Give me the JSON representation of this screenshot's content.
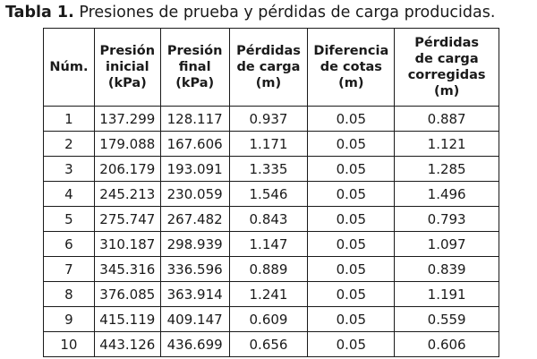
{
  "caption": {
    "label": "Tabla 1.",
    "text": "Presiones de prueba y pérdidas de carga producidas."
  },
  "table": {
    "headers": [
      "Núm.",
      "Presión inicial (kPa)",
      "Presión final (kPa)",
      "Pérdidas de carga (m)",
      "Diferencia de cotas (m)",
      "Pérdidas de carga corregidas (m)"
    ],
    "header_lines": [
      [
        "Núm."
      ],
      [
        "Presión",
        "inicial",
        "(kPa)"
      ],
      [
        "Presión",
        "final",
        "(kPa)"
      ],
      [
        "Pérdidas",
        "de carga",
        "(m)"
      ],
      [
        "Diferencia",
        "de cotas",
        "(m)"
      ],
      [
        "Pérdidas",
        "de carga",
        "corregidas",
        "(m)"
      ]
    ],
    "rows": [
      [
        "1",
        "137.299",
        "128.117",
        "0.937",
        "0.05",
        "0.887"
      ],
      [
        "2",
        "179.088",
        "167.606",
        "1.171",
        "0.05",
        "1.121"
      ],
      [
        "3",
        "206.179",
        "193.091",
        "1.335",
        "0.05",
        "1.285"
      ],
      [
        "4",
        "245.213",
        "230.059",
        "1.546",
        "0.05",
        "1.496"
      ],
      [
        "5",
        "275.747",
        "267.482",
        "0.843",
        "0.05",
        "0.793"
      ],
      [
        "6",
        "310.187",
        "298.939",
        "1.147",
        "0.05",
        "1.097"
      ],
      [
        "7",
        "345.316",
        "336.596",
        "0.889",
        "0.05",
        "0.839"
      ],
      [
        "8",
        "376.085",
        "363.914",
        "1.241",
        "0.05",
        "1.191"
      ],
      [
        "9",
        "415.119",
        "409.147",
        "0.609",
        "0.05",
        "0.559"
      ],
      [
        "10",
        "443.126",
        "436.699",
        "0.656",
        "0.05",
        "0.606"
      ]
    ]
  }
}
